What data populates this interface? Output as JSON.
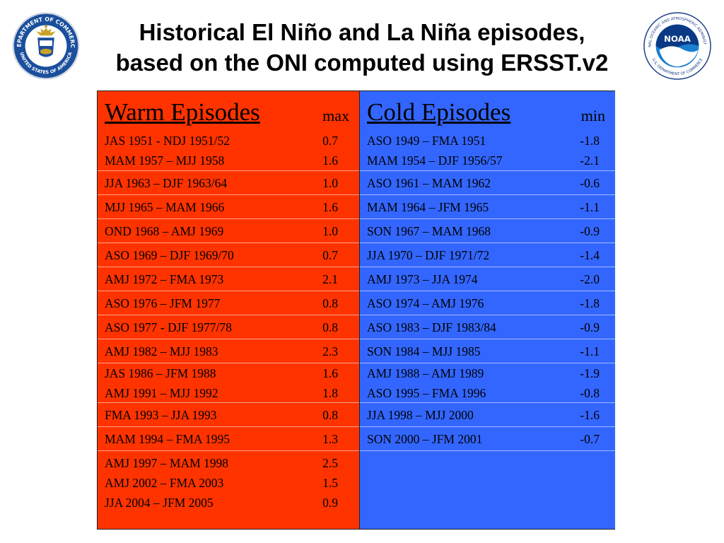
{
  "title": {
    "line1": "Historical El Niño and La Niña episodes,",
    "line2": "based on the ONI computed using ERSST.v2"
  },
  "seals": {
    "left_text": "DEPARTMENT OF COMMERCE",
    "left_text_bottom": "UNITED STATES OF AMERICA",
    "right_text": "NATIONAL OCEANIC AND ATMOSPHERIC ADMINISTRATION",
    "right_text_bottom": "U.S. DEPARTMENT OF COMMERCE",
    "right_center": "NOAA"
  },
  "warm": {
    "header": "Warm Episodes",
    "unit": "max",
    "groups": [
      [
        {
          "period": "JAS 1951 - NDJ 1951/52",
          "value": "0.7"
        },
        {
          "period": "MAM 1957 – MJJ 1958",
          "value": "1.6"
        }
      ],
      [
        {
          "period": "JJA 1963 – DJF 1963/64",
          "value": "1.0"
        }
      ],
      [
        {
          "period": "MJJ 1965 – MAM 1966",
          "value": "1.6"
        }
      ],
      [
        {
          "period": "OND 1968 – AMJ 1969",
          "value": "1.0"
        }
      ],
      [
        {
          "period": "ASO 1969 – DJF 1969/70",
          "value": "0.7"
        }
      ],
      [
        {
          "period": "AMJ 1972 – FMA 1973",
          "value": "2.1"
        }
      ],
      [
        {
          "period": "ASO 1976 – JFM 1977",
          "value": "0.8"
        }
      ],
      [
        {
          "period": "ASO 1977 - DJF 1977/78",
          "value": "0.8"
        }
      ],
      [
        {
          "period": "AMJ 1982 – MJJ 1983",
          "value": "2.3"
        }
      ],
      [
        {
          "period": "JAS 1986 – JFM 1988",
          "value": "1.6"
        },
        {
          "period": "AMJ 1991 – MJJ 1992",
          "value": "1.8"
        }
      ],
      [
        {
          "period": "FMA 1993 – JJA 1993",
          "value": "0.8"
        }
      ],
      [
        {
          "period": "MAM 1994 – FMA 1995",
          "value": "1.3"
        }
      ],
      [
        {
          "period": "AMJ 1997 – MAM 1998",
          "value": "2.5"
        },
        {
          "period": "AMJ 2002 – FMA 2003",
          "value": "1.5"
        },
        {
          "period": "JJA 2004 – JFM 2005",
          "value": "0.9"
        }
      ]
    ]
  },
  "cold": {
    "header": "Cold Episodes",
    "unit": "min",
    "groups": [
      [
        {
          "period": "ASO 1949 – FMA 1951",
          "value": "-1.8"
        },
        {
          "period": "MAM 1954 – DJF 1956/57",
          "value": "-2.1"
        }
      ],
      [
        {
          "period": "ASO 1961 – MAM 1962",
          "value": "-0.6"
        }
      ],
      [
        {
          "period": "MAM 1964 – JFM 1965",
          "value": "-1.1"
        }
      ],
      [
        {
          "period": "SON 1967 – MAM 1968",
          "value": "-0.9"
        }
      ],
      [
        {
          "period": "JJA 1970 – DJF 1971/72",
          "value": "-1.4"
        }
      ],
      [
        {
          "period": "AMJ 1973 – JJA 1974",
          "value": "-2.0"
        }
      ],
      [
        {
          "period": "ASO 1974 – AMJ 1976",
          "value": "-1.8"
        }
      ],
      [
        {
          "period": "ASO 1983 – DJF 1983/84",
          "value": "-0.9"
        }
      ],
      [
        {
          "period": "SON 1984 – MJJ 1985",
          "value": "-1.1"
        }
      ],
      [
        {
          "period": "AMJ 1988 – AMJ 1989",
          "value": "-1.9"
        },
        {
          "period": "ASO 1995 – FMA 1996",
          "value": "-0.8"
        }
      ],
      [
        {
          "period": "JJA 1998 – MJJ 2000",
          "value": "-1.6"
        }
      ],
      [
        {
          "period": "SON 2000 – JFM 2001",
          "value": "-0.7"
        }
      ],
      []
    ]
  },
  "colors": {
    "warm_bg": "#ff3300",
    "cold_bg": "#3366ff"
  }
}
